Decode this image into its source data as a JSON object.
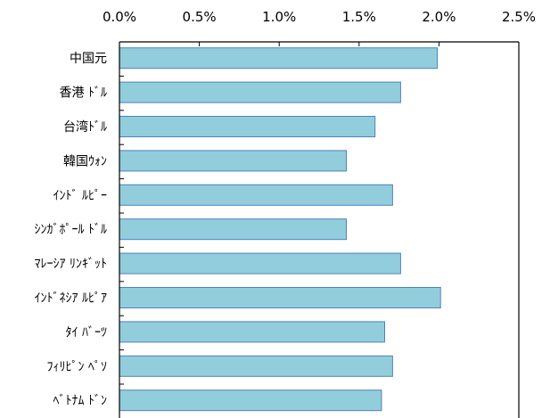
{
  "chart_data": {
    "type": "bar",
    "orientation": "horizontal",
    "categories": [
      "中国元",
      "香港 ﾄﾞﾙ",
      "台湾ﾄﾞﾙ",
      "韓国ｳｫﾝ",
      "ｲﾝﾄﾞ ﾙﾋﾟｰ",
      "ｼﾝｶﾞﾎﾟｰﾙ ﾄﾞﾙ",
      "ﾏﾚｰｼｱ ﾘﾝｷﾞｯﾄ",
      "ｲﾝﾄﾞﾈｼｱ ﾙﾋﾟｱ",
      "ﾀｲ ﾊﾞｰﾂ",
      "ﾌｨﾘﾋﾟﾝ ﾍﾟｿ",
      "ﾍﾞﾄﾅﾑ ﾄﾞﾝ"
    ],
    "values": [
      1.99,
      1.76,
      1.6,
      1.42,
      1.71,
      1.42,
      1.76,
      2.01,
      1.66,
      1.71,
      1.64
    ],
    "value_unit": "%",
    "xlim": [
      0,
      2.5
    ],
    "ticks": [
      0,
      0.5,
      1.0,
      1.5,
      2.0,
      2.5
    ],
    "tick_labels": [
      "0.0%",
      "0.5%",
      "1.0%",
      "1.5%",
      "2.0%",
      "2.5%"
    ],
    "axis_position": "top",
    "grid": false,
    "legend": "none",
    "title": "",
    "xlabel": "",
    "ylabel": "",
    "colors": {
      "bar_fill": "#92CDDC",
      "bar_stroke": "#4F81BD",
      "axis": "#000000",
      "text": "#000000"
    }
  }
}
